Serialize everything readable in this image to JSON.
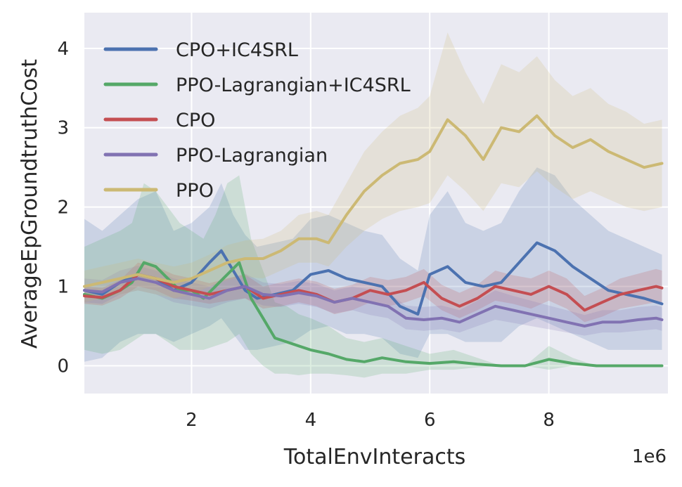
{
  "chart_data": {
    "type": "line",
    "xlabel": "TotalEnvInteracts",
    "ylabel": "AverageEpGroundtruthCost",
    "x_scale_label": "1e6",
    "xlim": [
      0.2,
      10.0
    ],
    "ylim": [
      -0.35,
      4.45
    ],
    "x_ticks": [
      2,
      4,
      6,
      8
    ],
    "y_ticks": [
      0,
      1,
      2,
      3,
      4
    ],
    "grid": true,
    "legend_position": "upper-left",
    "series": [
      {
        "name": "CPO+IC4SRL",
        "color": "#4c72b0",
        "x": [
          0.2,
          0.5,
          0.8,
          1.1,
          1.4,
          1.7,
          2.0,
          2.3,
          2.5,
          2.7,
          2.9,
          3.1,
          3.4,
          3.7,
          4.0,
          4.3,
          4.6,
          4.9,
          5.2,
          5.5,
          5.8,
          6.0,
          6.3,
          6.6,
          6.9,
          7.2,
          7.5,
          7.8,
          8.1,
          8.4,
          8.7,
          9.0,
          9.3,
          9.6,
          9.9
        ],
        "y": [
          0.95,
          0.9,
          1.05,
          1.15,
          1.1,
          0.95,
          1.05,
          1.3,
          1.45,
          1.2,
          0.95,
          0.85,
          0.9,
          0.95,
          1.15,
          1.2,
          1.1,
          1.05,
          1.0,
          0.75,
          0.65,
          1.15,
          1.25,
          1.05,
          1.0,
          1.05,
          1.3,
          1.55,
          1.45,
          1.25,
          1.1,
          0.95,
          0.9,
          0.85,
          0.78
        ],
        "band_lower": [
          0.05,
          0.1,
          0.3,
          0.4,
          0.4,
          0.3,
          0.4,
          0.5,
          0.6,
          0.4,
          0.2,
          0.2,
          0.25,
          0.3,
          0.45,
          0.5,
          0.4,
          0.4,
          0.35,
          0.15,
          0.1,
          0.4,
          0.4,
          0.3,
          0.3,
          0.3,
          0.5,
          0.6,
          0.5,
          0.4,
          0.3,
          0.2,
          0.2,
          0.2,
          0.2
        ],
        "band_upper": [
          1.85,
          1.7,
          1.9,
          2.1,
          2.2,
          1.7,
          1.8,
          2.0,
          2.3,
          1.9,
          1.65,
          1.5,
          1.55,
          1.6,
          1.85,
          1.9,
          1.8,
          1.7,
          1.65,
          1.35,
          1.2,
          1.9,
          2.2,
          1.8,
          1.7,
          1.8,
          2.2,
          2.5,
          2.4,
          2.1,
          1.9,
          1.7,
          1.6,
          1.5,
          1.4
        ]
      },
      {
        "name": "PPO-Lagrangian+IC4SRL",
        "color": "#55a868",
        "x": [
          0.2,
          0.5,
          0.8,
          1.0,
          1.2,
          1.4,
          1.6,
          1.8,
          2.0,
          2.2,
          2.4,
          2.6,
          2.8,
          3.0,
          3.2,
          3.4,
          3.6,
          3.8,
          4.0,
          4.3,
          4.6,
          4.9,
          5.2,
          5.6,
          6.0,
          6.4,
          6.8,
          7.2,
          7.6,
          8.0,
          8.4,
          8.8,
          9.2,
          9.6,
          9.9
        ],
        "y": [
          0.9,
          0.85,
          0.95,
          1.05,
          1.3,
          1.25,
          1.1,
          0.95,
          0.95,
          0.85,
          1.0,
          1.15,
          1.3,
          0.85,
          0.6,
          0.35,
          0.3,
          0.25,
          0.2,
          0.15,
          0.08,
          0.05,
          0.1,
          0.05,
          0.03,
          0.05,
          0.02,
          0.0,
          0.0,
          0.08,
          0.03,
          0.0,
          0.0,
          0.0,
          0.0
        ],
        "band_lower": [
          0.2,
          0.15,
          0.2,
          0.3,
          0.4,
          0.4,
          0.3,
          0.2,
          0.2,
          0.2,
          0.25,
          0.3,
          0.4,
          0.15,
          0.0,
          -0.1,
          -0.1,
          -0.12,
          -0.1,
          -0.1,
          -0.12,
          -0.15,
          -0.1,
          -0.1,
          -0.05,
          -0.05,
          -0.02,
          0.0,
          0.0,
          -0.05,
          0.0,
          0.0,
          0.0,
          0.0,
          0.0
        ],
        "band_upper": [
          1.5,
          1.6,
          1.7,
          1.8,
          2.3,
          2.2,
          2.0,
          1.8,
          1.7,
          1.6,
          1.9,
          2.3,
          2.4,
          1.6,
          1.2,
          0.8,
          0.75,
          0.65,
          0.6,
          0.5,
          0.35,
          0.3,
          0.35,
          0.25,
          0.15,
          0.2,
          0.1,
          0.0,
          0.0,
          0.25,
          0.1,
          0.0,
          0.0,
          0.0,
          0.0
        ]
      },
      {
        "name": "CPO",
        "color": "#c44e52",
        "x": [
          0.2,
          0.5,
          0.8,
          1.1,
          1.4,
          1.7,
          2.0,
          2.3,
          2.6,
          2.9,
          3.2,
          3.5,
          3.8,
          4.1,
          4.4,
          4.7,
          5.0,
          5.3,
          5.6,
          5.9,
          6.2,
          6.5,
          6.8,
          7.1,
          7.4,
          7.7,
          8.0,
          8.3,
          8.6,
          8.9,
          9.2,
          9.5,
          9.8,
          9.9
        ],
        "y": [
          0.88,
          0.86,
          0.95,
          1.15,
          1.1,
          1.0,
          0.95,
          0.9,
          0.95,
          1.0,
          0.85,
          0.9,
          0.95,
          0.9,
          0.8,
          0.85,
          0.95,
          0.9,
          0.95,
          1.05,
          0.85,
          0.75,
          0.85,
          1.0,
          0.95,
          0.9,
          1.0,
          0.9,
          0.7,
          0.8,
          0.9,
          0.95,
          1.0,
          0.98
        ],
        "band_lower": [
          0.78,
          0.76,
          0.85,
          1.0,
          0.95,
          0.85,
          0.82,
          0.78,
          0.82,
          0.85,
          0.72,
          0.75,
          0.8,
          0.75,
          0.65,
          0.7,
          0.8,
          0.75,
          0.8,
          0.88,
          0.7,
          0.6,
          0.7,
          0.82,
          0.78,
          0.72,
          0.82,
          0.72,
          0.55,
          0.62,
          0.72,
          0.76,
          0.8,
          0.78
        ],
        "band_upper": [
          1.0,
          0.98,
          1.08,
          1.3,
          1.25,
          1.15,
          1.1,
          1.04,
          1.1,
          1.15,
          1.0,
          1.05,
          1.1,
          1.06,
          0.97,
          1.02,
          1.12,
          1.08,
          1.12,
          1.22,
          1.02,
          0.92,
          1.02,
          1.2,
          1.14,
          1.1,
          1.2,
          1.1,
          0.88,
          0.98,
          1.1,
          1.16,
          1.22,
          1.2
        ]
      },
      {
        "name": "PPO-Lagrangian",
        "color": "#8172b2",
        "x": [
          0.2,
          0.5,
          0.8,
          1.1,
          1.4,
          1.7,
          2.0,
          2.3,
          2.6,
          2.9,
          3.2,
          3.5,
          3.8,
          4.1,
          4.4,
          4.7,
          5.0,
          5.3,
          5.6,
          5.9,
          6.2,
          6.5,
          6.8,
          7.1,
          7.4,
          7.7,
          8.0,
          8.3,
          8.6,
          8.9,
          9.2,
          9.5,
          9.8,
          9.9
        ],
        "y": [
          0.95,
          0.93,
          1.05,
          1.1,
          1.05,
          0.95,
          0.9,
          0.85,
          0.95,
          1.0,
          0.9,
          0.88,
          0.92,
          0.88,
          0.8,
          0.85,
          0.8,
          0.75,
          0.6,
          0.58,
          0.6,
          0.55,
          0.65,
          0.75,
          0.7,
          0.65,
          0.6,
          0.55,
          0.5,
          0.55,
          0.55,
          0.58,
          0.6,
          0.58
        ],
        "band_lower": [
          0.8,
          0.78,
          0.9,
          0.95,
          0.9,
          0.8,
          0.76,
          0.72,
          0.8,
          0.85,
          0.76,
          0.74,
          0.78,
          0.74,
          0.66,
          0.7,
          0.64,
          0.6,
          0.46,
          0.44,
          0.46,
          0.42,
          0.5,
          0.58,
          0.54,
          0.5,
          0.46,
          0.42,
          0.38,
          0.42,
          0.42,
          0.44,
          0.46,
          0.44
        ],
        "band_upper": [
          1.1,
          1.08,
          1.2,
          1.26,
          1.2,
          1.1,
          1.05,
          1.0,
          1.1,
          1.16,
          1.05,
          1.03,
          1.07,
          1.03,
          0.95,
          1.0,
          0.96,
          0.92,
          0.76,
          0.74,
          0.76,
          0.7,
          0.82,
          0.95,
          0.88,
          0.82,
          0.76,
          0.7,
          0.64,
          0.7,
          0.7,
          0.74,
          0.76,
          0.74
        ]
      },
      {
        "name": "PPO",
        "color": "#ccb974",
        "x": [
          0.2,
          0.5,
          0.8,
          1.1,
          1.4,
          1.7,
          2.0,
          2.3,
          2.6,
          2.9,
          3.2,
          3.5,
          3.8,
          4.1,
          4.3,
          4.6,
          4.9,
          5.2,
          5.5,
          5.8,
          6.0,
          6.3,
          6.6,
          6.9,
          7.2,
          7.5,
          7.8,
          8.1,
          8.4,
          8.7,
          9.0,
          9.3,
          9.6,
          9.9
        ],
        "y": [
          1.0,
          1.05,
          1.1,
          1.15,
          1.1,
          1.05,
          1.1,
          1.2,
          1.3,
          1.35,
          1.35,
          1.45,
          1.6,
          1.6,
          1.55,
          1.9,
          2.2,
          2.4,
          2.55,
          2.6,
          2.7,
          3.1,
          2.9,
          2.6,
          3.0,
          2.95,
          3.15,
          2.9,
          2.75,
          2.85,
          2.7,
          2.6,
          2.5,
          2.55
        ],
        "band_lower": [
          0.8,
          0.85,
          0.9,
          0.95,
          0.9,
          0.85,
          0.9,
          1.0,
          1.08,
          1.12,
          1.1,
          1.2,
          1.3,
          1.3,
          1.25,
          1.5,
          1.7,
          1.85,
          1.95,
          2.0,
          2.05,
          2.4,
          2.2,
          1.95,
          2.3,
          2.25,
          2.45,
          2.25,
          2.1,
          2.2,
          2.1,
          2.0,
          1.95,
          2.0
        ],
        "band_upper": [
          1.2,
          1.25,
          1.3,
          1.35,
          1.3,
          1.25,
          1.3,
          1.4,
          1.52,
          1.58,
          1.6,
          1.7,
          1.9,
          1.95,
          1.9,
          2.3,
          2.7,
          2.95,
          3.15,
          3.25,
          3.4,
          4.2,
          3.7,
          3.3,
          3.8,
          3.7,
          3.9,
          3.6,
          3.4,
          3.5,
          3.3,
          3.2,
          3.05,
          3.1
        ]
      }
    ]
  }
}
